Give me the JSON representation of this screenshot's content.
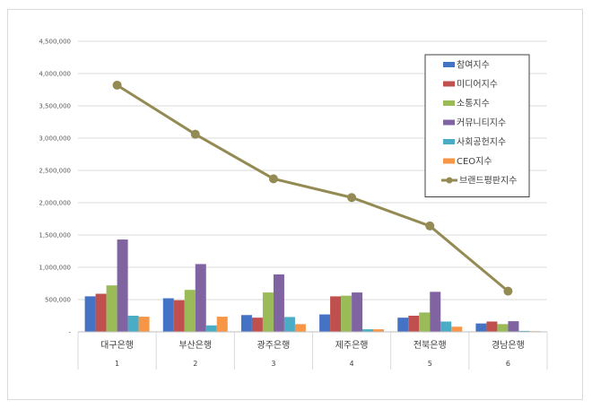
{
  "chart_data": {
    "type": "bar",
    "categories": [
      "대구은행",
      "부산은행",
      "광주은행",
      "제주은행",
      "전북은행",
      "경남은행"
    ],
    "category_index": [
      "1",
      "2",
      "3",
      "4",
      "5",
      "6"
    ],
    "ylim": [
      0,
      4500000
    ],
    "yticks": [
      0,
      500000,
      1000000,
      1500000,
      2000000,
      2500000,
      3000000,
      3500000,
      4000000,
      4500000
    ],
    "ytick_labels": [
      "-",
      "500,000",
      "1,000,000",
      "1,500,000",
      "2,000,000",
      "2,500,000",
      "3,000,000",
      "3,500,000",
      "4,000,000",
      "4,500,000"
    ],
    "grid": true,
    "legend_position": "top-right",
    "series": [
      {
        "name": "참여지수",
        "color": "#4472c4",
        "values": [
          550000,
          520000,
          260000,
          270000,
          220000,
          130000
        ]
      },
      {
        "name": "미디어지수",
        "color": "#c0504d",
        "values": [
          590000,
          490000,
          220000,
          550000,
          250000,
          160000
        ]
      },
      {
        "name": "소통지수",
        "color": "#9bbb59",
        "values": [
          720000,
          650000,
          610000,
          560000,
          300000,
          120000
        ]
      },
      {
        "name": "커뮤니티지수",
        "color": "#8064a2",
        "values": [
          1430000,
          1050000,
          890000,
          610000,
          620000,
          165000
        ]
      },
      {
        "name": "사회공헌지수",
        "color": "#4bacc6",
        "values": [
          250000,
          100000,
          230000,
          40000,
          160000,
          15000
        ]
      },
      {
        "name": "CEO지수",
        "color": "#f79646",
        "values": [
          235000,
          235000,
          120000,
          40000,
          80000,
          10000
        ]
      }
    ],
    "line_series": {
      "name": "브랜드평판지수",
      "color": "#948a54",
      "values": [
        3820000,
        3060000,
        2370000,
        2080000,
        1640000,
        630000
      ]
    }
  }
}
